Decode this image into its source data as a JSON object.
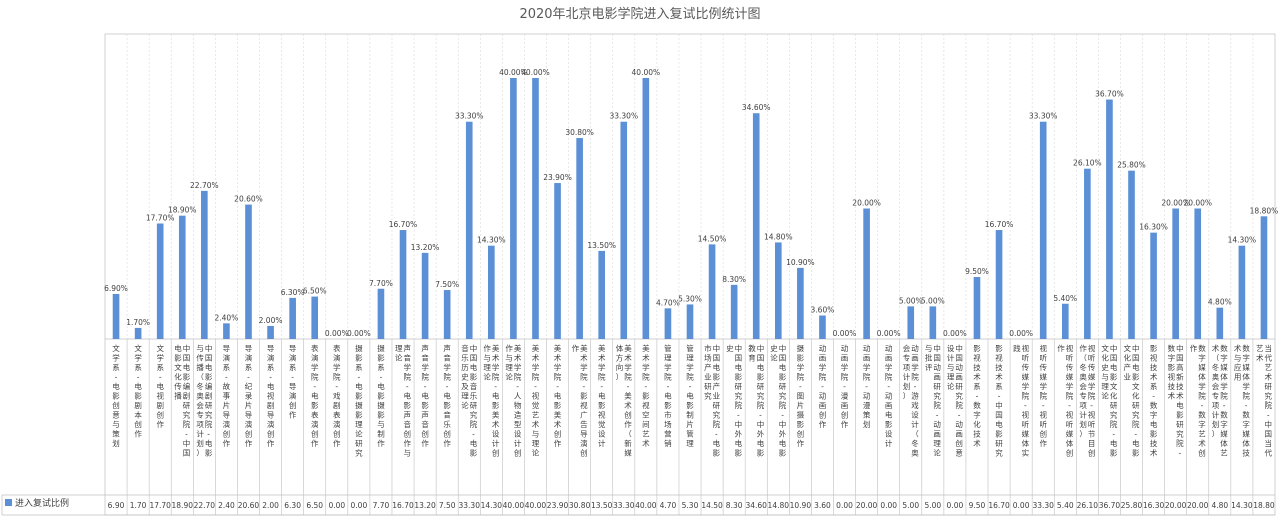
{
  "chart_data": {
    "type": "bar",
    "title": "2020年北京电影学院进入复试比例统计图",
    "legend_label": "进入复试比例",
    "legend_position": "bottom-left",
    "grid": true,
    "bar_color": "#5b8fd6",
    "ylim": [
      0,
      40
    ],
    "categories": [
      "文学系-电影创意与策划",
      "文学系-电影剧本创作",
      "文学系-电视剧创作",
      "中国电影编剧研究院-中国电影文化传播",
      "中国电影编剧研究院-电影与传播（冬奥会专项计划）",
      "导演系-故事片导演创作",
      "导演系-纪录片导演创作",
      "导演系-电视剧导演创作",
      "导演系-导演创作",
      "表演学院-电影表演创作",
      "表演学院-戏剧表演创作",
      "摄影系-电影摄影理论研究",
      "摄影系-电影摄影与制作",
      "声音学院-电影声音创作与理论",
      "声音学院-电影声音创作",
      "声音学院-电影音乐创作",
      "中国电影音乐研究院-电影音乐历史及理论",
      "美术学院-电影美术设计创作与理论",
      "美术学院-人物造型设计创作与理论",
      "美术学院-视觉艺术与理论",
      "美术学院-电影美术创作",
      "美术学院-影视广告导演创作",
      "美术学院-电影视觉设计",
      "美术学院-美术创作（新媒体方向）",
      "美术学院-影视空间艺术",
      "管理学院-电影市场营销",
      "管理学院-电影制片管理",
      "中国电影产业研究院-电影市场产业研究",
      "中国电影研究院-中外电影史",
      "中国电影研究院-中外电影教育",
      "中国电影研究院-中外电影史论",
      "摄影学院-图片摄影创作",
      "动画学院-动画创作",
      "动画学院-漫画创作",
      "动画学院-动漫策划",
      "动画学院-动画电影设计",
      "动画学院-游戏设计（冬奥会专项计划）",
      "中国动画研究院-动画理论与批评",
      "中国动画研究院-动画创意设计与理论",
      "影视技术系-数字化技术",
      "影视技术系-中国电影研究",
      "视听传媒学院-视听媒体实践",
      "视听传媒学院-视听创作",
      "视听传媒学院-视听媒体创作",
      "视听传媒学院-视听节目创作（冬奥会专项计划）",
      "中国电影文化研究院-电影文化史与理论",
      "中国电影文化研究院-电影文化产业",
      "影视技术系-数字电影技术",
      "中国高新技术电影研究院-数字影视技术",
      "数字媒体学院-数字艺术创作",
      "数字媒体学院-数字媒体艺术（冬奥会专项计划）",
      "数字媒体学院-数字媒体技术与应用",
      "当代艺术研究院-中国当代艺术"
    ],
    "values": [
      6.9,
      1.7,
      17.7,
      18.9,
      22.7,
      2.4,
      20.6,
      2.0,
      6.3,
      6.5,
      0.0,
      0.0,
      7.7,
      16.7,
      13.2,
      7.5,
      33.3,
      14.3,
      40.0,
      40.0,
      23.9,
      30.8,
      13.5,
      33.3,
      40.0,
      4.7,
      5.3,
      14.5,
      8.3,
      34.6,
      14.8,
      10.9,
      3.6,
      0.0,
      20.0,
      0.0,
      5.0,
      5.0,
      0.0,
      9.5,
      16.7,
      0.0,
      33.3,
      5.4,
      26.1,
      36.7,
      25.8,
      16.3,
      20.0,
      20.0,
      4.8,
      14.3,
      18.8
    ],
    "value_labels": [
      "6.90%",
      "1.70%",
      "17.70%",
      "18.90%",
      "22.70%",
      "2.40%",
      "20.60%",
      "2.00%",
      "6.30%",
      "6.50%",
      "0.00%",
      "0.00%",
      "7.70%",
      "16.70%",
      "13.20%",
      "7.50%",
      "33.30%",
      "14.30%",
      "40.00%",
      "40.00%",
      "23.90%",
      "30.80%",
      "13.50%",
      "33.30%",
      "40.00%",
      "4.70%",
      "5.30%",
      "14.50%",
      "8.30%",
      "34.60%",
      "14.80%",
      "10.90%",
      "3.60%",
      "0.00%",
      "20.00%",
      "0.00%",
      "5.00%",
      "5.00%",
      "0.00%",
      "9.50%",
      "16.70%",
      "0.00%",
      "33.30%",
      "5.40%",
      "26.10%",
      "36.70%",
      "25.80%",
      "16.30%",
      "20.00%",
      "20.00%",
      "4.80%",
      "14.30%",
      "18.80%"
    ],
    "table_values": [
      "6.90",
      "1.70",
      "17.70",
      "18.90",
      "22.70",
      "2.40",
      "20.60",
      "2.00",
      "6.30",
      "6.50",
      "0.00",
      "0.00",
      "7.70",
      "16.70",
      "13.20",
      "7.50",
      "33.30",
      "14.30",
      "40.00",
      "40.00",
      "23.90",
      "30.80",
      "13.50",
      "33.30",
      "40.00",
      "4.70",
      "5.30",
      "14.50",
      "8.30",
      "34.60",
      "14.80",
      "10.90",
      "3.60",
      "0.00",
      "20.00",
      "0.00",
      "5.00",
      "5.00",
      "0.00",
      "9.50",
      "16.70",
      "0.00",
      "33.30",
      "5.40",
      "26.10",
      "36.70",
      "25.80",
      "16.30",
      "20.00",
      "20.00",
      "4.80",
      "14.30",
      "18.80"
    ]
  }
}
